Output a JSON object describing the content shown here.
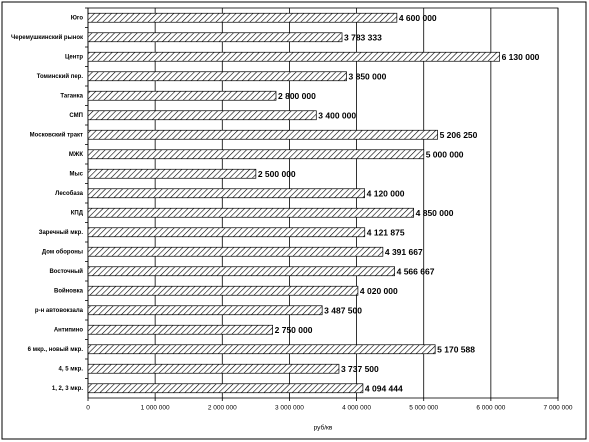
{
  "chart_data": {
    "type": "bar",
    "orientation": "horizontal",
    "x_label": "руб/кв",
    "categories": [
      "Юго",
      "Черемушкинский рынок",
      "Центр",
      "Томинский пер.",
      "Таганка",
      "СМП",
      "Московский тракт",
      "МЖК",
      "Мыс",
      "Лесобаза",
      "КПД",
      "Заречный мкр.",
      "Дом обороны",
      "Восточный",
      "Войновка",
      "р-н автовокзала",
      "Антипино",
      "6 мкр., новый мкр.",
      "4, 5 мкр.",
      "1, 2, 3 мкр."
    ],
    "values": [
      4600000,
      3783333,
      6130000,
      3850000,
      2800000,
      3400000,
      5206250,
      5000000,
      2500000,
      4120000,
      4850000,
      4121875,
      4391667,
      4566667,
      4020000,
      3487500,
      2750000,
      5170588,
      3737500,
      4094444
    ],
    "value_labels": [
      "4 600 000",
      "3 783 333",
      "6 130 000",
      "3 850 000",
      "2 800 000",
      "3 400 000",
      "5 206 250",
      "5 000 000",
      "2 500 000",
      "4 120 000",
      "4 850 000",
      "4 121 875",
      "4 391 667",
      "4 566 667",
      "4 020 000",
      "3 487 500",
      "2 750 000",
      "5 170 588",
      "3 737 500",
      "4 094 444"
    ],
    "color": "#000000",
    "xlim": [
      0,
      7000000
    ],
    "xticks": [
      0,
      {
        "value": 1000000,
        "label": "1 000 000"
      },
      {
        "value": 2000000,
        "label": "2 000 000"
      },
      {
        "value": 3000000,
        "label": "3 000 000"
      },
      {
        "value": 4000000,
        "label": "4 000 000"
      },
      {
        "value": 5000000,
        "label": "5 000 000"
      },
      {
        "value": 6000000,
        "label": "6 000 000"
      },
      {
        "value": 7000000,
        "label": "7 000 000"
      }
    ],
    "grid": true
  }
}
